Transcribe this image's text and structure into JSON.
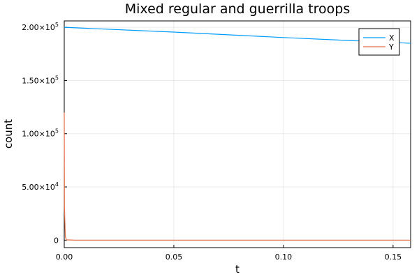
{
  "chart_data": {
    "type": "line",
    "title": "Mixed regular and guerrilla troops",
    "xlabel": "t",
    "ylabel": "count",
    "xlim": [
      0,
      0.158
    ],
    "ylim": [
      -7000,
      206000
    ],
    "grid": true,
    "legend": "top-right",
    "x_ticks": [
      {
        "value": 0.0,
        "label": "0.00"
      },
      {
        "value": 0.05,
        "label": "0.05"
      },
      {
        "value": 0.1,
        "label": "0.10"
      },
      {
        "value": 0.15,
        "label": "0.15"
      }
    ],
    "y_ticks": [
      {
        "value": 0,
        "label": "0",
        "exp": ""
      },
      {
        "value": 50000,
        "label": "5.00×10",
        "exp": "4"
      },
      {
        "value": 100000,
        "label": "1.00×10",
        "exp": "5"
      },
      {
        "value": 150000,
        "label": "1.50×10",
        "exp": "5"
      },
      {
        "value": 200000,
        "label": "2.00×10",
        "exp": "5"
      }
    ],
    "series": [
      {
        "name": "X",
        "color": "#009af9",
        "x": [
          0.0,
          0.05,
          0.1,
          0.158
        ],
        "y": [
          200000,
          195500,
          190400,
          185000
        ]
      },
      {
        "name": "Y",
        "color": "#e26f46",
        "x": [
          0.0,
          0.0001,
          0.0005,
          0.001,
          0.005,
          0.158
        ],
        "y": [
          120000,
          30000,
          3000,
          300,
          0,
          0
        ]
      }
    ]
  }
}
